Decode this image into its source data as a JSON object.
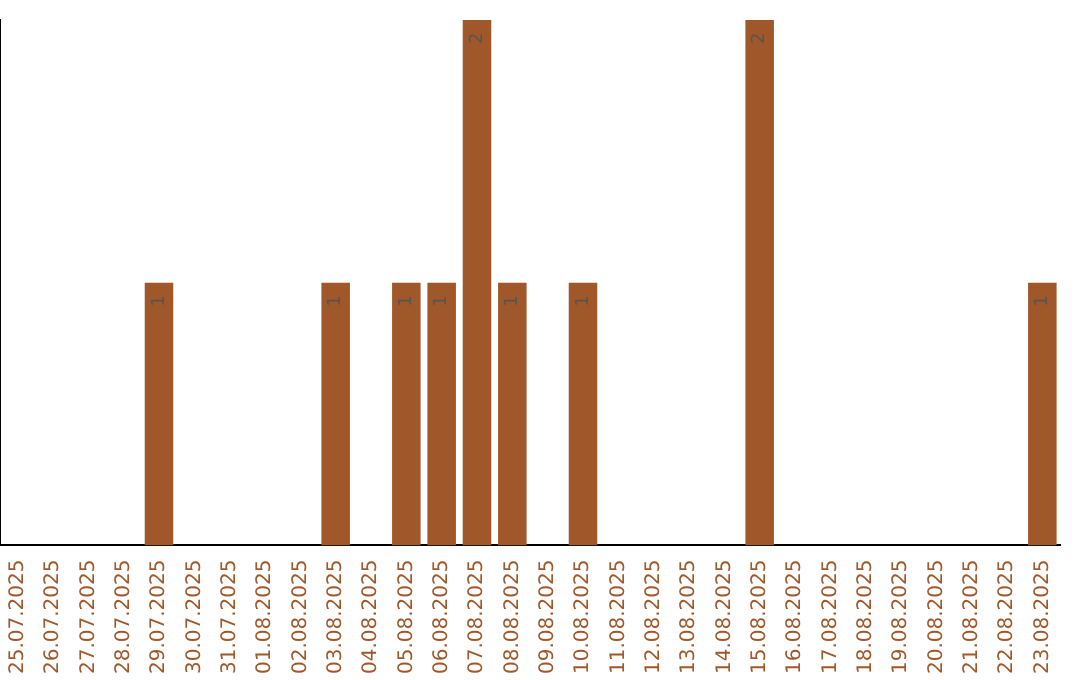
{
  "chart_data": {
    "type": "bar",
    "categories": [
      "25.07.2025",
      "26.07.2025",
      "27.07.2025",
      "28.07.2025",
      "29.07.2025",
      "30.07.2025",
      "31.07.2025",
      "01.08.2025",
      "02.08.2025",
      "03.08.2025",
      "04.08.2025",
      "05.08.2025",
      "06.08.2025",
      "07.08.2025",
      "08.08.2025",
      "09.08.2025",
      "10.08.2025",
      "11.08.2025",
      "12.08.2025",
      "13.08.2025",
      "14.08.2025",
      "15.08.2025",
      "16.08.2025",
      "17.08.2025",
      "18.08.2025",
      "19.08.2025",
      "20.08.2025",
      "21.08.2025",
      "22.08.2025",
      "23.08.2025"
    ],
    "values": [
      0,
      0,
      0,
      0,
      1,
      0,
      0,
      0,
      0,
      1,
      0,
      1,
      1,
      2,
      1,
      0,
      1,
      0,
      0,
      0,
      0,
      2,
      0,
      0,
      0,
      0,
      0,
      0,
      0,
      1
    ],
    "value_labels": [
      null,
      null,
      null,
      null,
      "1",
      null,
      null,
      null,
      null,
      "1",
      null,
      "1",
      "1",
      "2",
      "1",
      null,
      "1",
      null,
      null,
      null,
      null,
      "2",
      null,
      null,
      null,
      null,
      null,
      null,
      null,
      "1"
    ],
    "color": "#a0582a",
    "tick_labels": "x",
    "grid": false,
    "legend": false
  }
}
